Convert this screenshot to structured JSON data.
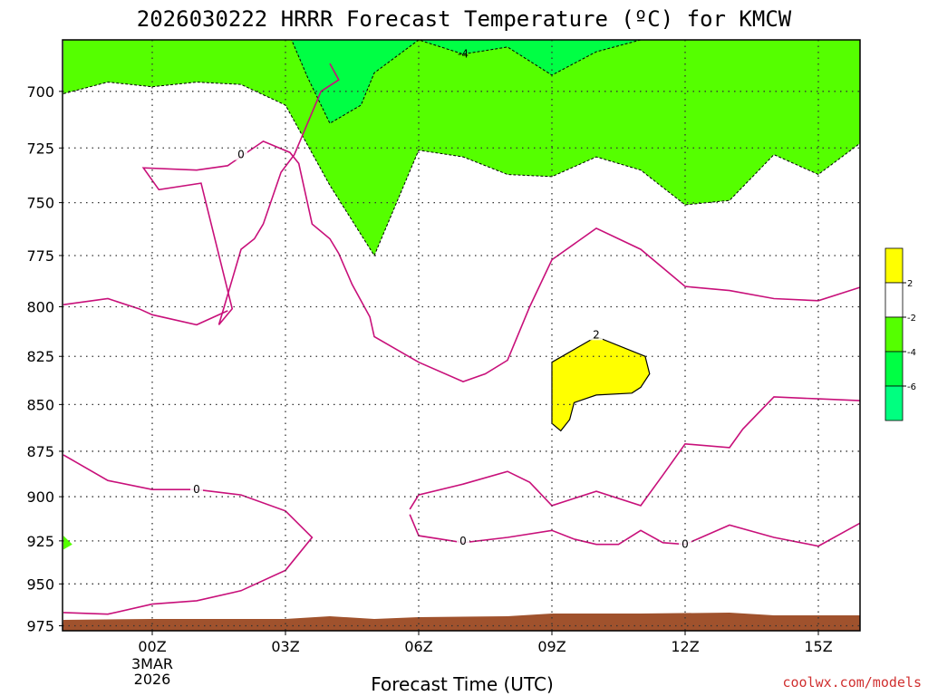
{
  "title": "2026030222 HRRR Forecast Temperature (ºC) for KMCW",
  "credit": "coolwx.com/models",
  "colors": {
    "yellow": "#ffff00",
    "green1": "#55ff00",
    "green2": "#00ff44",
    "green3": "#00ff80",
    "contour": "#c8107a",
    "terrain": "#a0522d",
    "credit": "#d03030"
  },
  "chart_data": {
    "type": "contour",
    "title": "2026030222 HRRR Forecast Temperature (ºC) for KMCW",
    "xlabel": "Forecast Time (UTC)",
    "ylabel": "",
    "x_ticks": [
      "00Z",
      "03Z",
      "06Z",
      "09Z",
      "12Z",
      "15Z"
    ],
    "x_date_label": [
      "3MAR",
      "2026"
    ],
    "x_range_hours": [
      -2,
      16
    ],
    "y_ticks": [
      700,
      725,
      750,
      775,
      800,
      825,
      850,
      875,
      900,
      925,
      950,
      975
    ],
    "y_range_mb": [
      678,
      978
    ],
    "y_scale": "log",
    "grid": true,
    "contour_labels": [
      "-4",
      "0",
      "0",
      "2",
      "0",
      "0"
    ],
    "legend": {
      "position": "right",
      "bins": [
        {
          "label": "2",
          "color": "#ffff00"
        },
        {
          "label": "-2",
          "color": "#ffffff"
        },
        {
          "label": "-4",
          "color": "#55ff00"
        },
        {
          "label": "-6",
          "color": "#00ff44"
        },
        {
          "label": "",
          "color": "#00ff80"
        }
      ]
    },
    "regions": [
      {
        "name": "upper-cold-region",
        "level": -4,
        "color": "#55ff00",
        "boundary": [
          [
            -2,
            701
          ],
          [
            -1,
            696
          ],
          [
            0,
            698
          ],
          [
            1,
            696
          ],
          [
            2,
            697
          ],
          [
            3,
            706
          ],
          [
            4,
            742
          ],
          [
            5,
            775
          ],
          [
            6,
            726
          ],
          [
            7,
            729
          ],
          [
            8,
            737
          ],
          [
            9,
            738
          ],
          [
            10,
            729
          ],
          [
            11,
            735
          ],
          [
            12,
            751
          ],
          [
            13,
            749
          ],
          [
            14,
            728
          ],
          [
            15,
            737
          ],
          [
            16,
            722
          ]
        ]
      },
      {
        "name": "colder-pocket",
        "level": -6,
        "color": "#00ff44",
        "boundary": [
          [
            3,
            672
          ],
          [
            3.5,
            694
          ],
          [
            4,
            714
          ],
          [
            4.7,
            706
          ],
          [
            5,
            692
          ],
          [
            6,
            678
          ],
          [
            7,
            684
          ],
          [
            8,
            681
          ],
          [
            9,
            693
          ],
          [
            10,
            683
          ],
          [
            11,
            678
          ],
          [
            12,
            676
          ],
          [
            13,
            672
          ]
        ]
      },
      {
        "name": "warm-pocket",
        "level": 2,
        "color": "#ffff00",
        "boundary": [
          [
            9,
            828
          ],
          [
            10,
            815
          ],
          [
            11.1,
            825
          ],
          [
            11.2,
            834
          ],
          [
            11,
            841
          ],
          [
            10.8,
            844
          ],
          [
            10,
            845
          ],
          [
            9.5,
            849
          ],
          [
            9.4,
            858
          ],
          [
            9.2,
            864
          ],
          [
            9,
            860
          ]
        ]
      },
      {
        "name": "surface-cold-spot",
        "level": -4,
        "color": "#55ff00",
        "boundary": [
          [
            -2,
            922
          ],
          [
            -1.8,
            927
          ],
          [
            -2,
            930
          ]
        ]
      }
    ],
    "zero_contours": [
      {
        "name": "upper-zero-line",
        "points": [
          [
            4,
            688
          ],
          [
            4.2,
            695
          ],
          [
            3.8,
            700
          ],
          [
            3.2,
            728
          ],
          [
            2.9,
            736
          ],
          [
            2.5,
            760
          ],
          [
            2.3,
            767
          ],
          [
            2.0,
            772
          ],
          [
            1.5,
            809
          ],
          [
            1.8,
            801
          ],
          [
            1.1,
            741
          ],
          [
            0.15,
            744
          ],
          [
            -0.2,
            734
          ],
          [
            1.0,
            735
          ],
          [
            1.7,
            733
          ],
          [
            2.5,
            722
          ],
          [
            3.1,
            727
          ],
          [
            3.3,
            732
          ],
          [
            3.6,
            760
          ],
          [
            4.0,
            767
          ],
          [
            4.2,
            774
          ],
          [
            4.5,
            789
          ],
          [
            4.9,
            805
          ],
          [
            5,
            815
          ],
          [
            6,
            828
          ],
          [
            7,
            838
          ],
          [
            7.5,
            834
          ],
          [
            8,
            827
          ],
          [
            8.5,
            800
          ],
          [
            9,
            777
          ],
          [
            10,
            762
          ],
          [
            11,
            772
          ],
          [
            12,
            790
          ],
          [
            13,
            792
          ],
          [
            14,
            796
          ],
          [
            15,
            797
          ],
          [
            16,
            790
          ]
        ]
      },
      {
        "name": "left-zero-loop",
        "points": [
          [
            -2,
            799
          ],
          [
            -1,
            796
          ],
          [
            -0.3,
            801
          ],
          [
            0,
            804
          ],
          [
            1,
            809
          ],
          [
            1.7,
            802
          ]
        ]
      },
      {
        "name": "lower-zero-line",
        "points": [
          [
            -2,
            877
          ],
          [
            -1,
            891
          ],
          [
            0,
            896
          ],
          [
            1,
            896
          ],
          [
            2,
            899
          ],
          [
            3,
            908
          ],
          [
            3.6,
            923
          ],
          [
            3,
            942
          ],
          [
            2,
            954
          ],
          [
            1,
            960
          ],
          [
            0,
            962
          ],
          [
            -1,
            968
          ],
          [
            -2,
            967
          ]
        ]
      },
      {
        "name": "right-zero-line",
        "points": [
          [
            5.8,
            907
          ],
          [
            6,
            899
          ],
          [
            7,
            893
          ],
          [
            8,
            886
          ],
          [
            8.5,
            892
          ],
          [
            9,
            905
          ],
          [
            10,
            897
          ],
          [
            11,
            905
          ],
          [
            11.5,
            888
          ],
          [
            12,
            871
          ],
          [
            13,
            873
          ],
          [
            13.3,
            863
          ],
          [
            14,
            846
          ],
          [
            15,
            847
          ],
          [
            16,
            848
          ]
        ]
      },
      {
        "name": "bottom-zero-line",
        "points": [
          [
            5.8,
            910
          ],
          [
            6,
            922
          ],
          [
            7,
            926
          ],
          [
            8,
            923
          ],
          [
            9,
            919
          ],
          [
            9.5,
            924
          ],
          [
            10,
            927
          ],
          [
            10.5,
            927
          ],
          [
            11,
            919
          ],
          [
            11.5,
            926
          ],
          [
            12,
            927
          ],
          [
            13,
            916
          ],
          [
            14,
            923
          ],
          [
            15,
            928
          ],
          [
            16,
            914
          ]
        ]
      }
    ]
  }
}
